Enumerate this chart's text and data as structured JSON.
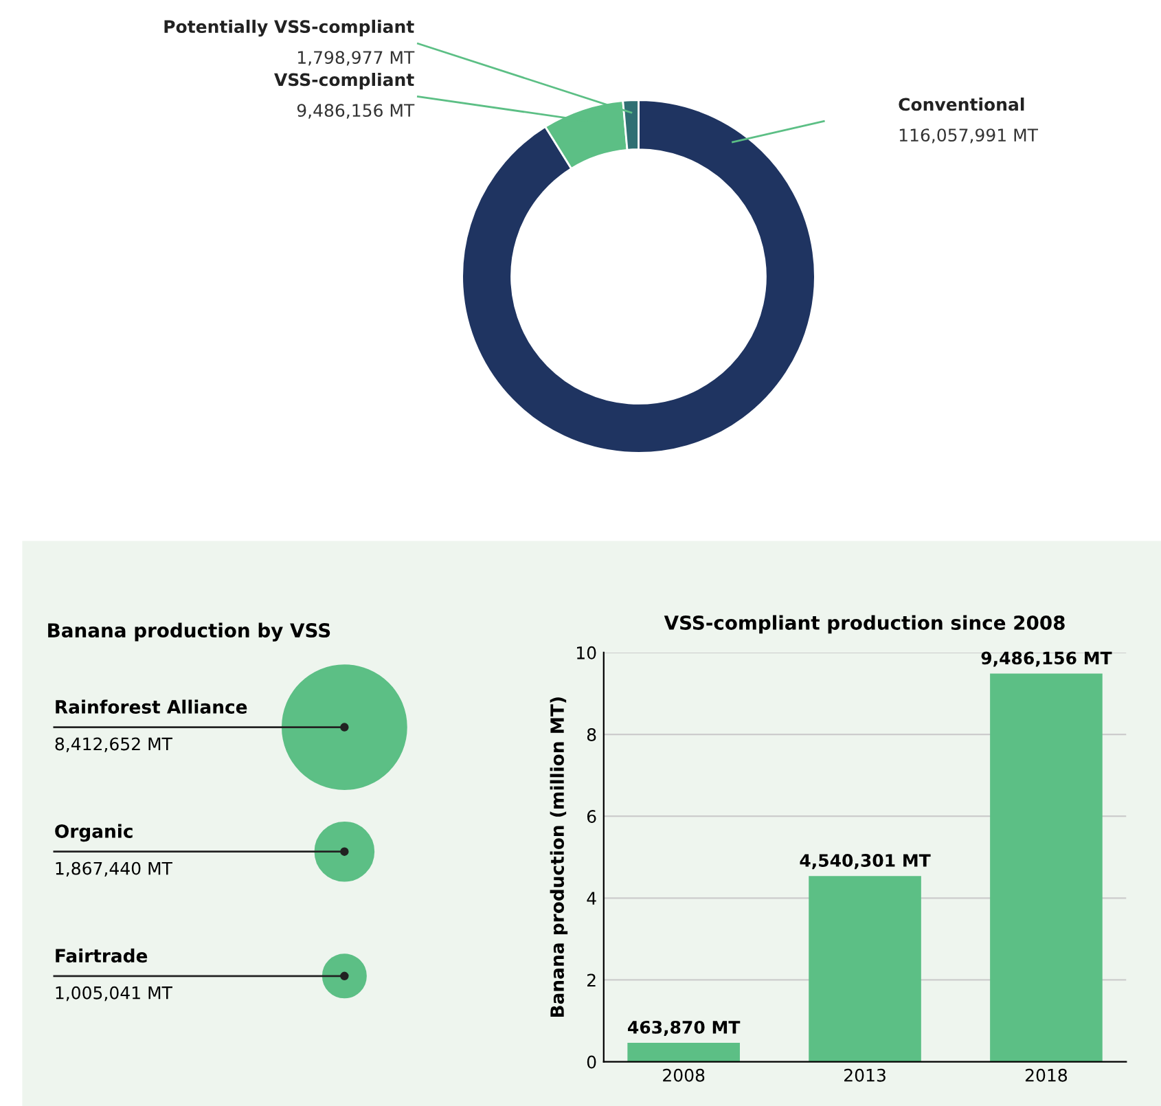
{
  "chart_data": [
    {
      "type": "donut",
      "categories": [
        "Conventional",
        "VSS-compliant",
        "Potentially VSS-compliant"
      ],
      "values": [
        116057991,
        9486156,
        1798977
      ],
      "colors": [
        "#1f3461",
        "#5cbf85",
        "#2f6f73"
      ],
      "value_labels": [
        "116,057,991 MT",
        "9,486,156 MT",
        "1,798,977 MT"
      ]
    },
    {
      "type": "other",
      "title": "Banana production by VSS",
      "categories": [
        "Rainforest Alliance",
        "Organic",
        "Fairtrade"
      ],
      "values": [
        8412652,
        1867440,
        1005041
      ],
      "color": "#5cbf85",
      "value_labels": [
        "8,412,652 MT",
        "1,867,440 MT",
        "1,005,041 MT"
      ]
    },
    {
      "type": "bar",
      "title": "VSS-compliant production since 2008",
      "ylabel": "Banana production (million MT)",
      "categories": [
        "2008",
        "2013",
        "2018"
      ],
      "values": [
        0.46387,
        4.540301,
        9.486156
      ],
      "color": "#5cbf85",
      "annotations": [
        {
          "text": "463,870 MT",
          "x": "2008",
          "y": 0.46387
        },
        {
          "text": "4,540,301 MT",
          "x": "2013",
          "y": 4.540301
        },
        {
          "text": "9,486,156 MT",
          "x": "2018",
          "y": 9.486156
        }
      ],
      "ylim": [
        0,
        10
      ],
      "yticks": [
        0,
        2,
        4,
        6,
        8,
        10
      ],
      "grid": "y"
    }
  ]
}
